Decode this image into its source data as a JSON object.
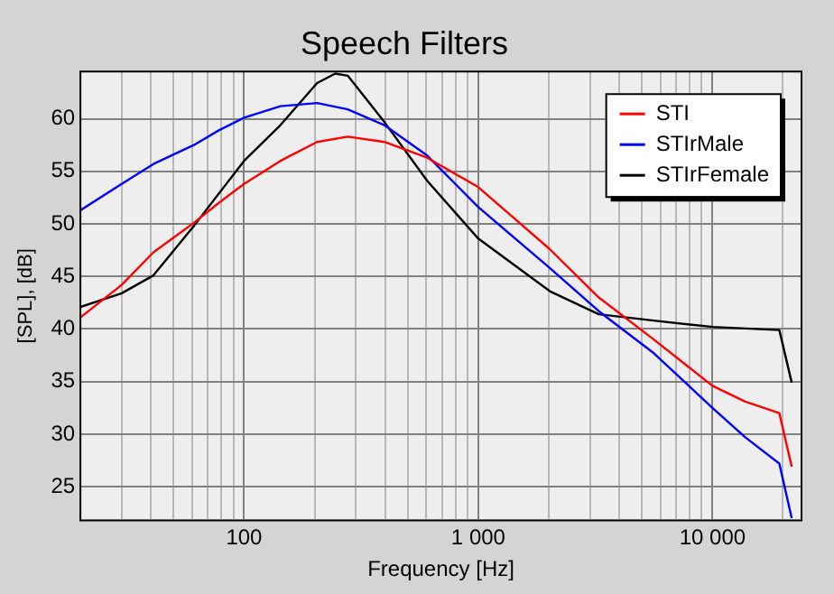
{
  "chart_data": {
    "type": "line",
    "title": "Speech Filters",
    "xlabel": "Frequency [Hz]",
    "ylabel": "[SPL], [dB]",
    "log": "x",
    "grid": true,
    "legend": "top right",
    "marker": "none",
    "line_style": "solid",
    "xlim": [
      20,
      24000
    ],
    "xticks": [
      {
        "value": 30,
        "label": null
      },
      {
        "value": 40,
        "label": null
      },
      {
        "value": 50,
        "label": null
      },
      {
        "value": 60,
        "label": null
      },
      {
        "value": 70,
        "label": null
      },
      {
        "value": 80,
        "label": null
      },
      {
        "value": 90,
        "label": null
      },
      {
        "value": 100,
        "label": "100"
      },
      {
        "value": 200,
        "label": null
      },
      {
        "value": 300,
        "label": null
      },
      {
        "value": 400,
        "label": null
      },
      {
        "value": 500,
        "label": null
      },
      {
        "value": 600,
        "label": null
      },
      {
        "value": 700,
        "label": null
      },
      {
        "value": 800,
        "label": null
      },
      {
        "value": 900,
        "label": null
      },
      {
        "value": 1000,
        "label": "1 000"
      },
      {
        "value": 2000,
        "label": null
      },
      {
        "value": 3000,
        "label": null
      },
      {
        "value": 4000,
        "label": null
      },
      {
        "value": 5000,
        "label": null
      },
      {
        "value": 6000,
        "label": null
      },
      {
        "value": 7000,
        "label": null
      },
      {
        "value": 8000,
        "label": null
      },
      {
        "value": 9000,
        "label": null
      },
      {
        "value": 10000,
        "label": "10 000"
      },
      {
        "value": 20000,
        "label": null
      }
    ],
    "ylim": [
      21.8,
      64.5
    ],
    "yticks": [
      25,
      30,
      35,
      40,
      45,
      50,
      55,
      60
    ],
    "series": [
      {
        "name": "STI",
        "color": "#ff0000",
        "x": [
          20,
          30,
          41,
          61,
          78,
          100,
          143,
          205,
          277,
          397,
          605,
          1000,
          2020,
          3270,
          5620,
          10000,
          13800,
          19300,
          21800
        ],
        "values": [
          41.1,
          44.2,
          47.3,
          50.1,
          52.0,
          53.8,
          56.0,
          57.8,
          58.3,
          57.8,
          56.3,
          53.5,
          47.6,
          43.0,
          39.0,
          34.6,
          33.1,
          32.0,
          26.9
        ]
      },
      {
        "name": "STIrMale",
        "color": "#0000ff",
        "x": [
          20,
          30,
          41,
          61,
          78,
          100,
          143,
          205,
          277,
          397,
          605,
          1000,
          2020,
          3270,
          5620,
          10000,
          13800,
          19300,
          21800
        ],
        "values": [
          51.3,
          53.8,
          55.7,
          57.5,
          58.9,
          60.1,
          61.2,
          61.5,
          60.9,
          59.4,
          56.5,
          51.6,
          45.8,
          41.7,
          37.7,
          32.5,
          29.7,
          27.2,
          22.0
        ]
      },
      {
        "name": "STIrFemale",
        "color": "#000000",
        "x": [
          20,
          30,
          41,
          61,
          100,
          143,
          205,
          245,
          277,
          397,
          605,
          1000,
          2020,
          3270,
          5620,
          10000,
          19300,
          21800
        ],
        "values": [
          42.1,
          43.4,
          45.1,
          49.8,
          56.0,
          59.4,
          63.4,
          64.3,
          64.1,
          59.7,
          54.1,
          48.6,
          43.6,
          41.4,
          40.8,
          40.2,
          39.9,
          34.9
        ]
      }
    ]
  }
}
